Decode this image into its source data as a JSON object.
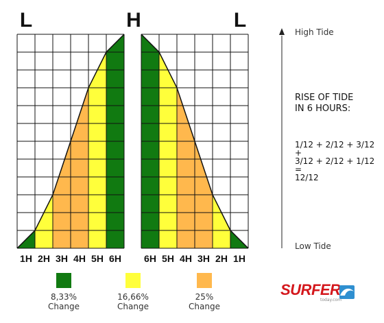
{
  "labels": {
    "left_low": "L",
    "high": "H",
    "right_low": "L"
  },
  "hours_left": [
    "1H",
    "2H",
    "3H",
    "4H",
    "5H",
    "6H"
  ],
  "hours_right": [
    "6H",
    "5H",
    "4H",
    "3H",
    "2H",
    "1H"
  ],
  "axis": {
    "high": "High Tide",
    "low": "Low Tide"
  },
  "rise": {
    "line1": "RISE OF TIDE",
    "line2": "IN 6 HOURS:"
  },
  "formula": {
    "line1": "1/12 + 2/12 + 3/12",
    "plus": "+",
    "line2": "3/12 + 2/12 + 1/12",
    "equals": "=",
    "result": "12/12"
  },
  "legend": [
    {
      "color": "#117a11",
      "value": "8,33%",
      "label": "Change"
    },
    {
      "color": "#ffff3b",
      "value": "16,66%",
      "label": "Change"
    },
    {
      "color": "#ffb84d",
      "value": "25%",
      "label": "Change"
    }
  ],
  "logo": {
    "word": "SURFER",
    "sub": "today.com"
  },
  "colors": {
    "green": "#117a11",
    "yellow": "#ffff3b",
    "orange": "#ffb84d",
    "grid": "#111111"
  },
  "chart_data": {
    "type": "area",
    "title": "",
    "rise_fractions": [
      1,
      2,
      3,
      3,
      2,
      1
    ],
    "bands_per_hour": [
      [
        "green"
      ],
      [
        "yellow"
      ],
      [
        "orange"
      ],
      [
        "orange"
      ],
      [
        "yellow"
      ],
      [
        "green"
      ]
    ]
  }
}
